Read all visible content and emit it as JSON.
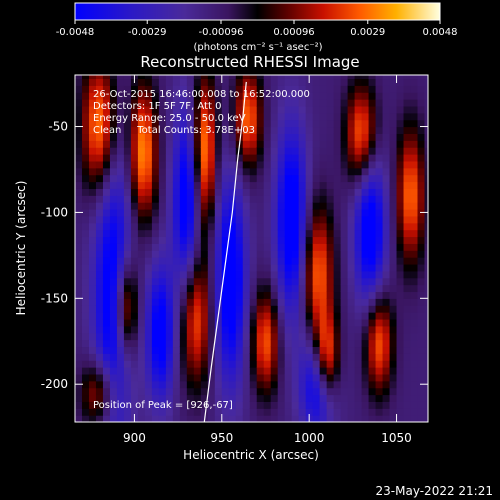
{
  "chart_data": {
    "type": "heatmap",
    "title": "Reconstructed RHESSI Image",
    "xlabel": "Heliocentric X (arcsec)",
    "ylabel": "Heliocentric Y (arcsec)",
    "xlim": [
      866,
      1068
    ],
    "ylim": [
      -222,
      -20
    ],
    "xticks": [
      900,
      950,
      1000,
      1050
    ],
    "yticks": [
      -50,
      -100,
      -150,
      -200
    ],
    "colorbar": {
      "ticks": [
        "-0.0048",
        "-0.0029",
        "-0.00096",
        "0.00096",
        "0.0029",
        "0.0048"
      ],
      "min": -0.0048,
      "max": 0.0048,
      "unit_label": "(photons cm⁻² s⁻¹ asec⁻²)"
    },
    "annotations": {
      "time_range": "26-Oct-2015 16:46:00.008 to 16:52:00.000",
      "detectors": "Detectors: 1F 5F 7F, Att 0",
      "energy": "Energy Range: 25.0 - 50.0 keV",
      "method": "Clean     Total Counts: 3.78E+03",
      "peak": "Position of Peak = [926,-67]"
    },
    "peak_position": [
      926,
      -67
    ],
    "limb_curve": [
      [
        940,
        -222
      ],
      [
        944,
        -190
      ],
      [
        948,
        -160
      ],
      [
        952,
        -130
      ],
      [
        956,
        -100
      ],
      [
        959,
        -70
      ],
      [
        962,
        -45
      ],
      [
        964,
        -24
      ]
    ],
    "dark_bands": [
      {
        "x": 888,
        "y": -150,
        "sx": 11,
        "sy": 85,
        "v": -0.0046
      },
      {
        "x": 930,
        "y": -95,
        "sx": 8,
        "sy": 55,
        "v": -0.0045
      },
      {
        "x": 955,
        "y": -140,
        "sx": 9,
        "sy": 60,
        "v": -0.0046
      },
      {
        "x": 990,
        "y": -105,
        "sx": 9,
        "sy": 55,
        "v": -0.0047
      },
      {
        "x": 1035,
        "y": -110,
        "sx": 9,
        "sy": 45,
        "v": -0.0045
      },
      {
        "x": 1005,
        "y": -200,
        "sx": 10,
        "sy": 30,
        "v": -0.004
      },
      {
        "x": 915,
        "y": -170,
        "sx": 8,
        "sy": 40,
        "v": -0.0042
      }
    ],
    "bright_bands": [
      {
        "x": 880,
        "y": -50,
        "sx": 10,
        "sy": 40,
        "v": 0.0046
      },
      {
        "x": 905,
        "y": -65,
        "sx": 8,
        "sy": 40,
        "v": 0.0045
      },
      {
        "x": 940,
        "y": -65,
        "sx": 7,
        "sy": 45,
        "v": 0.0047
      },
      {
        "x": 965,
        "y": -45,
        "sx": 8,
        "sy": 30,
        "v": 0.004
      },
      {
        "x": 895,
        "y": -155,
        "sx": 7,
        "sy": 30,
        "v": 0.0046
      },
      {
        "x": 935,
        "y": -160,
        "sx": 9,
        "sy": 40,
        "v": 0.004
      },
      {
        "x": 975,
        "y": -175,
        "sx": 8,
        "sy": 30,
        "v": 0.0038
      },
      {
        "x": 1010,
        "y": -185,
        "sx": 7,
        "sy": 25,
        "v": 0.0047
      },
      {
        "x": 1005,
        "y": -135,
        "sx": 9,
        "sy": 40,
        "v": 0.004
      },
      {
        "x": 1040,
        "y": -175,
        "sx": 8,
        "sy": 30,
        "v": 0.004
      },
      {
        "x": 1030,
        "y": -55,
        "sx": 9,
        "sy": 30,
        "v": 0.0042
      },
      {
        "x": 1058,
        "y": -90,
        "sx": 8,
        "sy": 40,
        "v": 0.004
      },
      {
        "x": 880,
        "y": -205,
        "sx": 10,
        "sy": 20,
        "v": 0.0035
      }
    ]
  },
  "footer": {
    "date": "23-May-2022 21:21"
  }
}
